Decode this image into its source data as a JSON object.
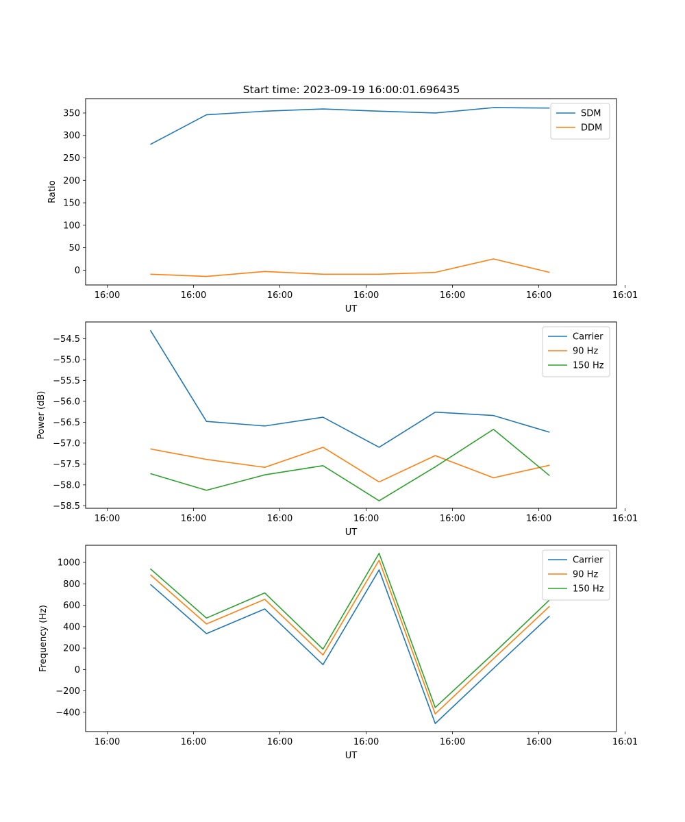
{
  "title": "Start time: 2023-09-19 16:00:01.696435",
  "colors": {
    "c0": "#1f77b4",
    "c1": "#ff7f0e",
    "c2": "#2ca02c"
  },
  "chart_data": [
    {
      "type": "line",
      "title": "Start time: 2023-09-19 16:00:01.696435",
      "xlabel": "UT",
      "ylabel": "Ratio",
      "xlim": [
        -0.5,
        11.8
      ],
      "ylim": [
        -33,
        382
      ],
      "x": [
        1,
        2.3,
        3.65,
        5,
        6.3,
        7.6,
        8.95,
        10.25
      ],
      "xticks": [
        {
          "value": 0,
          "label": "16:00"
        },
        {
          "value": 2,
          "label": "16:00"
        },
        {
          "value": 4,
          "label": "16:00"
        },
        {
          "value": 6,
          "label": "16:00"
        },
        {
          "value": 8,
          "label": "16:00"
        },
        {
          "value": 10,
          "label": "16:00"
        },
        {
          "value": 12,
          "label": "16:01"
        }
      ],
      "yticks": [
        {
          "value": 0,
          "label": "0"
        },
        {
          "value": 50,
          "label": "50"
        },
        {
          "value": 100,
          "label": "100"
        },
        {
          "value": 150,
          "label": "150"
        },
        {
          "value": 200,
          "label": "200"
        },
        {
          "value": 250,
          "label": "250"
        },
        {
          "value": 300,
          "label": "300"
        },
        {
          "value": 350,
          "label": "350"
        }
      ],
      "legend_loc": "top-right",
      "series": [
        {
          "name": "SDM",
          "color": "#1f77b4",
          "values": [
            280,
            346,
            354,
            359,
            354,
            350,
            362,
            361
          ]
        },
        {
          "name": "DDM",
          "color": "#ff7f0e",
          "values": [
            -9,
            -14,
            -3,
            -9,
            -9,
            -5,
            25,
            -5
          ]
        }
      ]
    },
    {
      "type": "line",
      "title": "",
      "xlabel": "UT",
      "ylabel": "Power (dB)",
      "xlim": [
        -0.5,
        11.8
      ],
      "ylim": [
        -58.56,
        -54.1
      ],
      "x": [
        1,
        2.3,
        3.65,
        5,
        6.3,
        7.6,
        8.95,
        10.25
      ],
      "xticks": [
        {
          "value": 0,
          "label": "16:00"
        },
        {
          "value": 2,
          "label": "16:00"
        },
        {
          "value": 4,
          "label": "16:00"
        },
        {
          "value": 6,
          "label": "16:00"
        },
        {
          "value": 8,
          "label": "16:00"
        },
        {
          "value": 10,
          "label": "16:00"
        },
        {
          "value": 12,
          "label": "16:01"
        }
      ],
      "yticks": [
        {
          "value": -58.5,
          "label": "−58.5"
        },
        {
          "value": -58.0,
          "label": "−58.0"
        },
        {
          "value": -57.5,
          "label": "−57.5"
        },
        {
          "value": -57.0,
          "label": "−57.0"
        },
        {
          "value": -56.5,
          "label": "−56.5"
        },
        {
          "value": -56.0,
          "label": "−56.0"
        },
        {
          "value": -55.5,
          "label": "−55.5"
        },
        {
          "value": -55.0,
          "label": "−55.0"
        },
        {
          "value": -54.5,
          "label": "−54.5"
        }
      ],
      "legend_loc": "top-right",
      "series": [
        {
          "name": "Carrier",
          "color": "#1f77b4",
          "values": [
            -54.3,
            -56.48,
            -56.59,
            -56.38,
            -57.1,
            -56.26,
            -56.34,
            -56.74
          ]
        },
        {
          "name": "90 Hz",
          "color": "#ff7f0e",
          "values": [
            -57.14,
            -57.39,
            -57.58,
            -57.1,
            -57.93,
            -57.3,
            -57.83,
            -57.53
          ]
        },
        {
          "name": "150 Hz",
          "color": "#2ca02c",
          "values": [
            -57.73,
            -58.13,
            -57.76,
            -57.54,
            -58.38,
            -57.57,
            -56.67,
            -57.78
          ]
        }
      ]
    },
    {
      "type": "line",
      "title": "",
      "xlabel": "UT",
      "ylabel": "Frequency (Hz)",
      "xlim": [
        -0.5,
        11.8
      ],
      "ylim": [
        -580,
        1160
      ],
      "x": [
        1,
        2.3,
        3.65,
        5,
        6.3,
        7.6,
        8.95,
        10.25
      ],
      "xticks": [
        {
          "value": 0,
          "label": "16:00"
        },
        {
          "value": 2,
          "label": "16:00"
        },
        {
          "value": 4,
          "label": "16:00"
        },
        {
          "value": 6,
          "label": "16:00"
        },
        {
          "value": 8,
          "label": "16:00"
        },
        {
          "value": 10,
          "label": "16:00"
        },
        {
          "value": 12,
          "label": "16:01"
        }
      ],
      "yticks": [
        {
          "value": -400,
          "label": "−400"
        },
        {
          "value": -200,
          "label": "−200"
        },
        {
          "value": 0,
          "label": "0"
        },
        {
          "value": 200,
          "label": "200"
        },
        {
          "value": 400,
          "label": "400"
        },
        {
          "value": 600,
          "label": "600"
        },
        {
          "value": 800,
          "label": "800"
        },
        {
          "value": 1000,
          "label": "1000"
        }
      ],
      "legend_loc": "top-right",
      "series": [
        {
          "name": "Carrier",
          "color": "#1f77b4",
          "values": [
            795,
            335,
            565,
            45,
            930,
            -505,
            10,
            500
          ]
        },
        {
          "name": "90 Hz",
          "color": "#ff7f0e",
          "values": [
            885,
            425,
            655,
            135,
            1020,
            -415,
            100,
            590
          ]
        },
        {
          "name": "150 Hz",
          "color": "#2ca02c",
          "values": [
            940,
            480,
            715,
            190,
            1085,
            -355,
            150,
            650
          ]
        }
      ]
    }
  ]
}
